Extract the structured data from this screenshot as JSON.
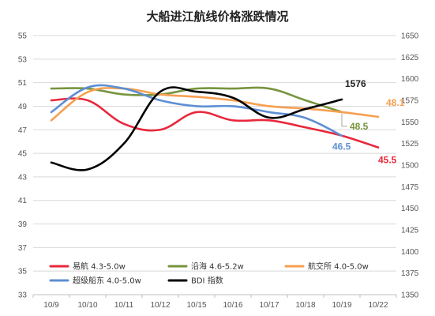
{
  "chart_data": {
    "type": "line",
    "title": "大船进江航线价格涨跌情况",
    "categories": [
      "10/9",
      "10/10",
      "10/11",
      "10/12",
      "10/15",
      "10/16",
      "10/17",
      "10/18",
      "10/19",
      "10/22"
    ],
    "y_left": {
      "min": 33,
      "max": 55,
      "ticks": [
        33,
        35,
        37,
        39,
        41,
        43,
        45,
        47,
        49,
        51,
        53,
        55
      ]
    },
    "y_right": {
      "min": 1350,
      "max": 1650,
      "ticks": [
        1350,
        1375,
        1400,
        1425,
        1450,
        1475,
        1500,
        1525,
        1550,
        1575,
        1600,
        1625,
        1650
      ]
    },
    "grid": true,
    "legend_position": "bottom",
    "series": [
      {
        "name": "易航 4.3-5.0w",
        "axis": "left",
        "color": "#e8283c",
        "values": [
          49.5,
          49.5,
          47.5,
          47.0,
          48.5,
          47.8,
          47.8,
          47.2,
          46.5,
          45.5
        ]
      },
      {
        "name": "沿海 4.6-5.2w",
        "axis": "left",
        "color": "#77953d",
        "values": [
          50.5,
          50.5,
          50.0,
          50.0,
          50.5,
          50.5,
          50.5,
          49.5,
          48.5,
          null
        ]
      },
      {
        "name": "航交所 4.0-5.0w",
        "axis": "left",
        "color": "#f6a052",
        "values": [
          47.8,
          50.2,
          50.5,
          50.0,
          49.8,
          49.5,
          49.0,
          48.8,
          48.5,
          48.1
        ]
      },
      {
        "name": "超级船东 4.0-5.0w",
        "axis": "left",
        "color": "#5d8fd3",
        "values": [
          48.5,
          50.6,
          50.5,
          49.5,
          49.0,
          49.0,
          48.5,
          48.0,
          46.5,
          null
        ]
      },
      {
        "name": "BDI 指数",
        "axis": "right",
        "color": "#000000",
        "values": [
          1503,
          1495,
          1525,
          1585,
          1585,
          1578,
          1555,
          1565,
          1576,
          null
        ]
      }
    ],
    "annotations": [
      {
        "text": "1576",
        "series": 4,
        "index": 8,
        "color": "#222222"
      },
      {
        "text": "48.1",
        "series": 2,
        "index": 9,
        "color": "#f6a052"
      },
      {
        "text": "48.5",
        "series": 1,
        "index": 8,
        "color": "#77953d"
      },
      {
        "text": "46.5",
        "series": 3,
        "index": 8,
        "color": "#5d8fd3"
      },
      {
        "text": "45.5",
        "series": 0,
        "index": 9,
        "color": "#e8283c"
      }
    ]
  }
}
